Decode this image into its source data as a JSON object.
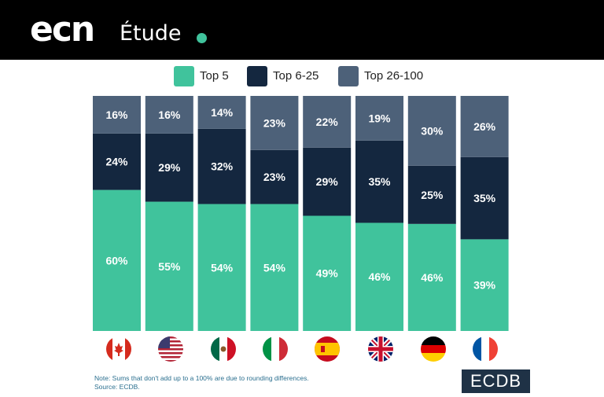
{
  "header": {
    "brand": "ecn",
    "subtitle": "Étude"
  },
  "colors": {
    "top5": "#40c39c",
    "top6_25": "#14273f",
    "top26_100": "#4d6179",
    "accent_dot": "#40c39c",
    "background": "#ffffff"
  },
  "legend": [
    {
      "label": "Top 5"
    },
    {
      "label": "Top 6-25"
    },
    {
      "label": "Top 26-100"
    }
  ],
  "chart_data": {
    "type": "bar",
    "stacked": true,
    "percent_stacked": true,
    "categories": [
      "Canada",
      "United States",
      "Mexico",
      "Italy",
      "Spain",
      "United Kingdom",
      "Germany",
      "France"
    ],
    "category_icons": [
      "flag-canada-icon",
      "flag-usa-icon",
      "flag-mexico-icon",
      "flag-italy-icon",
      "flag-spain-icon",
      "flag-uk-icon",
      "flag-germany-icon",
      "flag-france-icon"
    ],
    "series": [
      {
        "name": "Top 5",
        "values": [
          60,
          55,
          54,
          54,
          49,
          46,
          46,
          39
        ]
      },
      {
        "name": "Top 6-25",
        "values": [
          24,
          29,
          32,
          23,
          29,
          35,
          25,
          35
        ]
      },
      {
        "name": "Top 26-100",
        "values": [
          16,
          16,
          14,
          23,
          22,
          19,
          30,
          26
        ]
      }
    ],
    "ylim": [
      0,
      100
    ],
    "grid": false,
    "legend_position": "top"
  },
  "footer": {
    "note": "Note: Sums that don't add up to a 100% are due to rounding differences.",
    "source": "Source: ECDB.",
    "logo": "ECDB"
  }
}
